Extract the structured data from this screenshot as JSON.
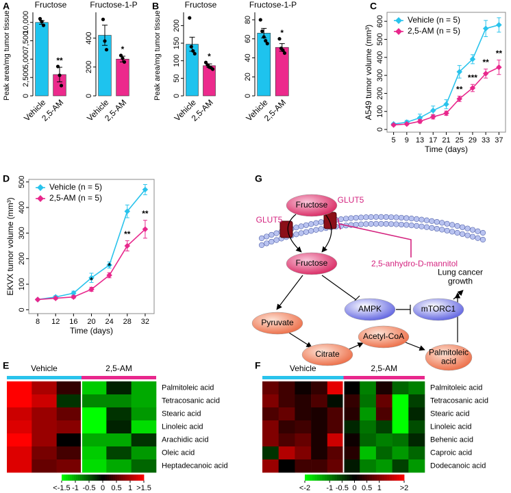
{
  "chart_data": [
    {
      "type": "bar",
      "panel": "A",
      "title": "Fructose",
      "ylabel": "Peak area/mg tumor tissue",
      "categories": [
        "Vehicle",
        "2,5-AM"
      ],
      "colors": [
        "#1ec3ee",
        "#ec2a8c"
      ],
      "values": [
        10000,
        2900
      ],
      "errors": [
        250,
        1000
      ],
      "points": [
        [
          10500,
          10100,
          9600
        ],
        [
          4000,
          2800,
          1400
        ]
      ],
      "annotations": [
        null,
        "**"
      ],
      "ylim": [
        0,
        11000
      ],
      "yticks": [
        0,
        {
          "value": 2500,
          "label": "2,500"
        },
        {
          "value": 5000,
          "label": "5,000"
        },
        {
          "value": 7500,
          "label": "7,500"
        },
        {
          "value": 10000,
          "label": "10,000"
        }
      ]
    },
    {
      "type": "bar",
      "title": "Fructose-1-P",
      "categories": [
        "Vehicle",
        "2,5-AM"
      ],
      "colors": [
        "#1ec3ee",
        "#ec2a8c"
      ],
      "values": [
        420,
        255
      ],
      "errors": [
        70,
        20
      ],
      "points": [
        [
          530,
          380,
          320
        ],
        [
          280,
          260,
          235
        ]
      ],
      "annotations": [
        null,
        "*"
      ],
      "ylim": [
        0,
        560
      ],
      "yticks": [
        0,
        200,
        400
      ]
    },
    {
      "type": "bar",
      "panel": "B",
      "title": "Fructose",
      "ylabel": "Peak area/mg tumor tissue",
      "categories": [
        "Vehicle",
        "2,5-AM"
      ],
      "colors": [
        "#1ec3ee",
        "#ec2a8c"
      ],
      "values": [
        147,
        86
      ],
      "errors": [
        20,
        5
      ],
      "points": [
        [
          222,
          140,
          128,
          120
        ],
        [
          95,
          88,
          82,
          80,
          76
        ]
      ],
      "annotations": [
        null,
        "*"
      ],
      "ylim": [
        0,
        230
      ],
      "yticks": [
        0,
        50,
        100,
        150,
        200
      ]
    },
    {
      "type": "bar",
      "title": "Fructose-1-P",
      "categories": [
        "Vehicle",
        "2,5-AM"
      ],
      "colors": [
        "#1ec3ee",
        "#ec2a8c"
      ],
      "values": [
        66,
        51
      ],
      "errors": [
        5,
        4
      ],
      "points": [
        [
          80,
          68,
          62,
          58,
          55
        ],
        [
          60,
          50,
          48,
          45
        ]
      ],
      "annotations": [
        null,
        "*"
      ],
      "ylim": [
        0,
        85
      ],
      "yticks": [
        0,
        20,
        40,
        60,
        80
      ]
    },
    {
      "type": "line",
      "panel": "C",
      "xlabel": "Time (days)",
      "ylabel": "A549 tumor volume (mm³)",
      "x": [
        5,
        9,
        13,
        17,
        21,
        25,
        29,
        33,
        37
      ],
      "series": [
        {
          "name": "Vehicle (n = 5)",
          "color": "#29c3ec",
          "values": [
            30,
            40,
            65,
            105,
            140,
            320,
            390,
            560,
            580
          ],
          "errors": [
            5,
            10,
            20,
            25,
            25,
            35,
            25,
            45,
            40
          ]
        },
        {
          "name": "2,5-AM (n = 5)",
          "color": "#e8278c",
          "values": [
            25,
            30,
            45,
            70,
            90,
            170,
            230,
            310,
            345
          ],
          "errors": [
            5,
            5,
            10,
            12,
            12,
            15,
            20,
            25,
            40
          ]
        }
      ],
      "annotations": [
        null,
        null,
        null,
        null,
        null,
        "**",
        "***",
        "**",
        "**"
      ],
      "legend": "upper left",
      "xlim": [
        3,
        39
      ],
      "xticks": [
        5,
        9,
        13,
        17,
        21,
        25,
        29,
        33,
        37
      ],
      "ylim": [
        -15,
        650
      ],
      "yticks": [
        0,
        100,
        200,
        300,
        400,
        500,
        600
      ]
    },
    {
      "type": "line",
      "panel": "D",
      "xlabel": "Time (days)",
      "ylabel": "EKVX tumor volume (mm³)",
      "x": [
        8,
        12,
        16,
        20,
        24,
        28,
        32
      ],
      "series": [
        {
          "name": "Vehicle (n = 5)",
          "color": "#29c3ec",
          "values": [
            40,
            50,
            65,
            125,
            175,
            385,
            470
          ],
          "errors": [
            3,
            5,
            8,
            18,
            12,
            25,
            20
          ]
        },
        {
          "name": "2,5-AM (n = 5)",
          "color": "#e8278c",
          "values": [
            40,
            45,
            50,
            80,
            135,
            250,
            315
          ],
          "errors": [
            3,
            4,
            5,
            8,
            10,
            20,
            35
          ]
        }
      ],
      "annotations": [
        null,
        null,
        null,
        "*",
        "*",
        "**",
        "**"
      ],
      "legend": "upper left",
      "xlim": [
        6,
        34
      ],
      "xticks": [
        8,
        12,
        16,
        20,
        24,
        28,
        32
      ],
      "ylim": [
        -15,
        510
      ],
      "yticks": [
        0,
        100,
        200,
        300,
        400,
        500
      ]
    },
    {
      "type": "heatmap",
      "panel": "E",
      "groups": [
        "Vehicle",
        "2,5-AM"
      ],
      "group_colors": [
        "#29c3ec",
        "#e8278c"
      ],
      "group_sizes": [
        3,
        3
      ],
      "rows": [
        "Palmitoleic acid",
        "Tetracosanic acid",
        "Stearic acid",
        "Linoleic acid",
        "Arachidic acid",
        "Oleic acid",
        "Heptadecanoic acid"
      ],
      "values": [
        [
          1.5,
          1.0,
          0.3,
          -1.2,
          -0.2,
          -1.0
        ],
        [
          1.5,
          1.2,
          -0.3,
          -0.8,
          -0.8,
          -1.0
        ],
        [
          1.2,
          0.9,
          0.6,
          -1.5,
          -0.3,
          -0.9
        ],
        [
          1.3,
          0.9,
          0.8,
          -1.5,
          -0.2,
          -1.3
        ],
        [
          1.5,
          0.9,
          0.0,
          -1.0,
          -1.0,
          -0.3
        ],
        [
          1.3,
          0.7,
          0.4,
          -1.2,
          -0.4,
          -0.9
        ],
        [
          1.3,
          0.6,
          0.7,
          -1.3,
          -1.0,
          -0.6
        ]
      ],
      "zlim": [
        -1.5,
        1.5
      ],
      "zticks": [
        {
          "value": -1.5,
          "label": "<-1.5"
        },
        -1,
        -0.5,
        0,
        0.5,
        1,
        {
          "value": 1.5,
          "label": ">1.5"
        }
      ]
    },
    {
      "type": "heatmap",
      "panel": "F",
      "groups": [
        "Vehicle",
        "2,5-AM"
      ],
      "group_colors": [
        "#29c3ec",
        "#e8278c"
      ],
      "group_sizes": [
        5,
        5
      ],
      "rows": [
        "Palmitoleic acid",
        "Tetracosanic acid",
        "Stearic acid",
        "Linoleic acid",
        "Behenic acid",
        "Caproic acid",
        "Dodecanoic acid"
      ],
      "values": [
        [
          0.8,
          0.5,
          0.1,
          0.4,
          1.8,
          0.0,
          -1.0,
          0.2,
          -0.8,
          -1.0
        ],
        [
          1.0,
          0.5,
          0.3,
          0.6,
          -0.1,
          0.4,
          -0.9,
          0.8,
          -2,
          -0.5
        ],
        [
          0.6,
          0.8,
          0.3,
          0.2,
          0.6,
          0.3,
          -1.2,
          0.6,
          -2,
          -0.3
        ],
        [
          1.0,
          0.4,
          0.5,
          0.2,
          0.6,
          -0.3,
          -0.9,
          -0.5,
          -2,
          -0.6
        ],
        [
          1.0,
          0.6,
          0.8,
          0.2,
          1.6,
          0.1,
          -0.8,
          -1.0,
          -0.9,
          -0.3
        ],
        [
          -0.4,
          1.4,
          1.0,
          0.2,
          0.7,
          0.3,
          -1.5,
          -0.8,
          -1.2,
          -0.8
        ],
        [
          1.2,
          0.0,
          0.5,
          0.5,
          0.8,
          -0.2,
          -1.0,
          -1.2,
          -0.5,
          -1.2
        ]
      ],
      "zlim": [
        -2,
        2
      ],
      "zticks": [
        {
          "value": -2,
          "label": "<-2"
        },
        -1,
        -0.5,
        0,
        0.5,
        1,
        {
          "value": 2,
          "label": ">2"
        }
      ]
    }
  ],
  "diagram": {
    "panel": "G",
    "nodes": [
      "Fructose",
      "GLUT5",
      "GLUT5",
      "Fructose",
      "2,5-anhydro-D-mannitol",
      "AMPK",
      "mTORC1",
      [
        "Lung cancer",
        "growth"
      ],
      "Pyruvate",
      "Citrate",
      "Acetyl-CoA",
      [
        "Palmitoleic",
        "acid"
      ]
    ]
  }
}
